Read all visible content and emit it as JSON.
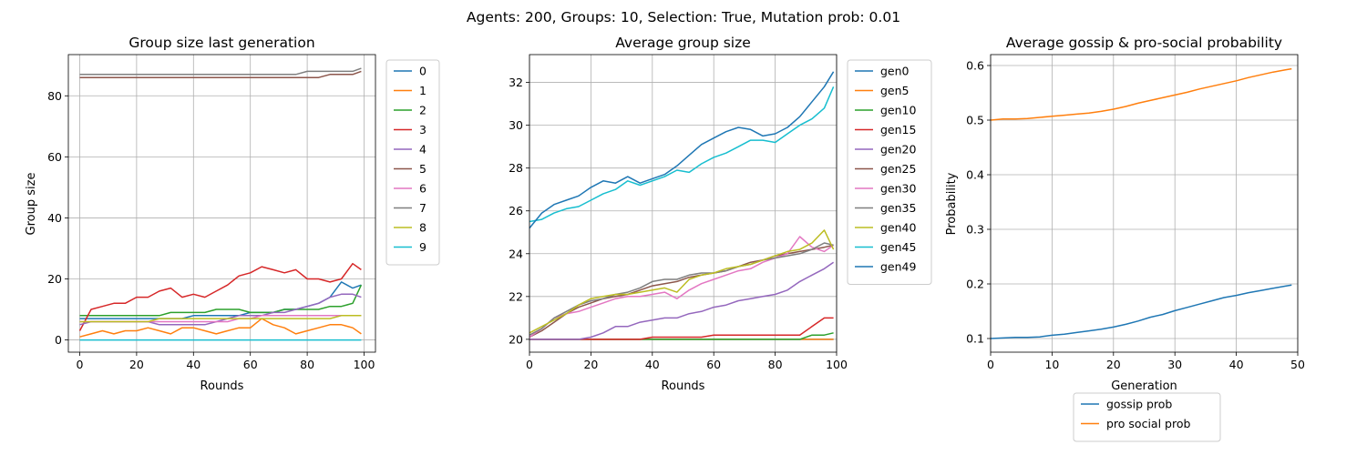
{
  "figure": {
    "suptitle": "Agents: 200, Groups: 10, Selection: True, Mutation prob: 0.01"
  },
  "colors": {
    "c0": "#1f77b4",
    "c1": "#ff7f0e",
    "c2": "#2ca02c",
    "c3": "#d62728",
    "c4": "#9467bd",
    "c5": "#8c564b",
    "c6": "#e377c2",
    "c7": "#7f7f7f",
    "c8": "#bcbd22",
    "c9": "#17becf"
  },
  "chart_data": [
    {
      "type": "line",
      "title": "Group size last generation",
      "xlabel": "Rounds",
      "ylabel": "Group size",
      "xlim": [
        -4,
        104
      ],
      "ylim": [
        -4,
        93.5
      ],
      "xticks": [
        0,
        20,
        40,
        60,
        80,
        100
      ],
      "yticks": [
        0,
        20,
        40,
        60,
        80
      ],
      "grid": true,
      "legend_position": "outside-right",
      "x": [
        0,
        4,
        8,
        12,
        16,
        20,
        24,
        28,
        32,
        36,
        40,
        44,
        48,
        52,
        56,
        60,
        64,
        68,
        72,
        76,
        80,
        84,
        88,
        92,
        96,
        99
      ],
      "series": [
        {
          "name": "0",
          "color": "#1f77b4",
          "values": [
            7,
            7,
            7,
            7,
            7,
            7,
            7,
            7,
            7,
            7,
            8,
            8,
            8,
            8,
            8,
            9,
            9,
            9,
            10,
            10,
            11,
            12,
            14,
            19,
            17,
            18
          ]
        },
        {
          "name": "1",
          "color": "#ff7f0e",
          "values": [
            1,
            2,
            3,
            2,
            3,
            3,
            4,
            3,
            2,
            4,
            4,
            3,
            2,
            3,
            4,
            4,
            7,
            5,
            4,
            2,
            3,
            4,
            5,
            5,
            4,
            2
          ]
        },
        {
          "name": "2",
          "color": "#2ca02c",
          "values": [
            8,
            8,
            8,
            8,
            8,
            8,
            8,
            8,
            9,
            9,
            9,
            9,
            10,
            10,
            10,
            9,
            9,
            9,
            10,
            10,
            10,
            10,
            11,
            11,
            12,
            18
          ]
        },
        {
          "name": "3",
          "color": "#d62728",
          "values": [
            3,
            10,
            11,
            12,
            12,
            14,
            14,
            16,
            17,
            14,
            15,
            14,
            16,
            18,
            21,
            22,
            24,
            23,
            22,
            23,
            20,
            20,
            19,
            20,
            25,
            23
          ]
        },
        {
          "name": "4",
          "color": "#9467bd",
          "values": [
            5,
            6,
            6,
            6,
            6,
            6,
            6,
            5,
            5,
            5,
            5,
            5,
            6,
            7,
            8,
            8,
            8,
            9,
            9,
            10,
            11,
            12,
            14,
            15,
            15,
            14
          ]
        },
        {
          "name": "5",
          "color": "#8c564b",
          "values": [
            86,
            86,
            86,
            86,
            86,
            86,
            86,
            86,
            86,
            86,
            86,
            86,
            86,
            86,
            86,
            86,
            86,
            86,
            86,
            86,
            86,
            86,
            87,
            87,
            87,
            88
          ]
        },
        {
          "name": "6",
          "color": "#e377c2",
          "values": [
            6,
            6,
            6,
            6,
            6,
            6,
            6,
            6,
            6,
            6,
            6,
            6,
            6,
            6,
            7,
            7,
            8,
            8,
            8,
            8,
            8,
            8,
            8,
            8,
            8,
            8
          ]
        },
        {
          "name": "7",
          "color": "#7f7f7f",
          "values": [
            87,
            87,
            87,
            87,
            87,
            87,
            87,
            87,
            87,
            87,
            87,
            87,
            87,
            87,
            87,
            87,
            87,
            87,
            87,
            87,
            88,
            88,
            88,
            88,
            88,
            89
          ]
        },
        {
          "name": "8",
          "color": "#bcbd22",
          "values": [
            6,
            6,
            6,
            6,
            6,
            6,
            6,
            7,
            7,
            7,
            7,
            7,
            7,
            7,
            7,
            7,
            7,
            7,
            7,
            7,
            7,
            7,
            7,
            8,
            8,
            8
          ]
        },
        {
          "name": "9",
          "color": "#17becf",
          "values": [
            0,
            0,
            0,
            0,
            0,
            0,
            0,
            0,
            0,
            0,
            0,
            0,
            0,
            0,
            0,
            0,
            0,
            0,
            0,
            0,
            0,
            0,
            0,
            0,
            0,
            0
          ]
        }
      ]
    },
    {
      "type": "line",
      "title": "Average group size",
      "xlabel": "Rounds",
      "ylabel": "",
      "xlim": [
        0,
        100
      ],
      "ylim": [
        19.4,
        33.3
      ],
      "xticks": [
        0,
        20,
        40,
        60,
        80,
        100
      ],
      "yticks": [
        20,
        22,
        24,
        26,
        28,
        30,
        32
      ],
      "grid": true,
      "legend_position": "outside-right",
      "x": [
        0,
        4,
        8,
        12,
        16,
        20,
        24,
        28,
        32,
        36,
        40,
        44,
        48,
        52,
        56,
        60,
        64,
        68,
        72,
        76,
        80,
        84,
        88,
        92,
        96,
        99
      ],
      "series": [
        {
          "name": "gen0",
          "color": "#1f77b4",
          "values": [
            20,
            20,
            20,
            20,
            20,
            20,
            20,
            20,
            20,
            20,
            20,
            20,
            20,
            20,
            20,
            20,
            20,
            20,
            20,
            20,
            20,
            20,
            20,
            20,
            20,
            20
          ]
        },
        {
          "name": "gen5",
          "color": "#ff7f0e",
          "values": [
            20,
            20,
            20,
            20,
            20,
            20,
            20,
            20,
            20,
            20,
            20,
            20,
            20,
            20,
            20,
            20,
            20,
            20,
            20,
            20,
            20,
            20,
            20,
            20,
            20,
            20
          ]
        },
        {
          "name": "gen10",
          "color": "#2ca02c",
          "values": [
            20,
            20,
            20,
            20,
            20,
            20,
            20,
            20,
            20,
            20,
            20,
            20,
            20,
            20,
            20,
            20,
            20,
            20,
            20,
            20,
            20,
            20,
            20,
            20.2,
            20.2,
            20.3
          ]
        },
        {
          "name": "gen15",
          "color": "#d62728",
          "values": [
            20,
            20,
            20,
            20,
            20,
            20,
            20,
            20,
            20,
            20,
            20.1,
            20.1,
            20.1,
            20.1,
            20.1,
            20.2,
            20.2,
            20.2,
            20.2,
            20.2,
            20.2,
            20.2,
            20.2,
            20.6,
            21,
            21
          ]
        },
        {
          "name": "gen20",
          "color": "#9467bd",
          "values": [
            20,
            20,
            20,
            20,
            20,
            20.1,
            20.3,
            20.6,
            20.6,
            20.8,
            20.9,
            21,
            21,
            21.2,
            21.3,
            21.5,
            21.6,
            21.8,
            21.9,
            22,
            22.1,
            22.3,
            22.7,
            23,
            23.3,
            23.6
          ]
        },
        {
          "name": "gen25",
          "color": "#8c564b",
          "values": [
            20.1,
            20.4,
            20.8,
            21.2,
            21.5,
            21.7,
            21.9,
            22,
            22.1,
            22.3,
            22.5,
            22.6,
            22.7,
            22.9,
            23,
            23.1,
            23.2,
            23.4,
            23.6,
            23.7,
            23.9,
            24,
            24.1,
            24.2,
            24.3,
            24.4
          ]
        },
        {
          "name": "gen30",
          "color": "#e377c2",
          "values": [
            20.1,
            20.5,
            21,
            21.2,
            21.3,
            21.5,
            21.7,
            21.9,
            22,
            22,
            22.1,
            22.2,
            21.9,
            22.3,
            22.6,
            22.8,
            23,
            23.2,
            23.3,
            23.6,
            23.8,
            24,
            24.8,
            24.3,
            24.1,
            24.4
          ]
        },
        {
          "name": "gen35",
          "color": "#7f7f7f",
          "values": [
            20.2,
            20.5,
            21,
            21.3,
            21.6,
            21.8,
            21.9,
            22.1,
            22.2,
            22.4,
            22.7,
            22.8,
            22.8,
            23,
            23.1,
            23.1,
            23.2,
            23.4,
            23.5,
            23.7,
            23.8,
            23.9,
            24,
            24.2,
            24.5,
            24.4
          ]
        },
        {
          "name": "gen40",
          "color": "#bcbd22",
          "values": [
            20.3,
            20.6,
            20.9,
            21.2,
            21.6,
            21.9,
            22,
            22.1,
            22.1,
            22.2,
            22.3,
            22.4,
            22.2,
            22.8,
            23,
            23.1,
            23.3,
            23.4,
            23.5,
            23.7,
            23.9,
            24.1,
            24.2,
            24.5,
            25.1,
            24.2
          ]
        },
        {
          "name": "gen45",
          "color": "#17becf",
          "values": [
            25.5,
            25.6,
            25.9,
            26.1,
            26.2,
            26.5,
            26.8,
            27,
            27.4,
            27.2,
            27.4,
            27.6,
            27.9,
            27.8,
            28.2,
            28.5,
            28.7,
            29,
            29.3,
            29.3,
            29.2,
            29.6,
            30,
            30.3,
            30.8,
            31.8
          ]
        },
        {
          "name": "gen49",
          "color": "#1f77b4",
          "values": [
            25.2,
            25.9,
            26.3,
            26.5,
            26.7,
            27.1,
            27.4,
            27.3,
            27.6,
            27.3,
            27.5,
            27.7,
            28.1,
            28.6,
            29.1,
            29.4,
            29.7,
            29.9,
            29.8,
            29.5,
            29.6,
            29.9,
            30.4,
            31.1,
            31.8,
            32.5
          ]
        }
      ]
    },
    {
      "type": "line",
      "title": "Average gossip & pro-social probability",
      "xlabel": "Generation",
      "ylabel": "Probability",
      "xlim": [
        0,
        50
      ],
      "ylim": [
        0.075,
        0.62
      ],
      "xticks": [
        0,
        10,
        20,
        30,
        40,
        50
      ],
      "yticks": [
        0.1,
        0.2,
        0.3,
        0.4,
        0.5,
        0.6
      ],
      "grid": true,
      "legend_position": "below",
      "x": [
        0,
        2,
        4,
        6,
        8,
        10,
        12,
        14,
        16,
        18,
        20,
        22,
        24,
        26,
        28,
        30,
        32,
        34,
        36,
        38,
        40,
        42,
        44,
        46,
        48,
        49
      ],
      "series": [
        {
          "name": "gossip prob",
          "color": "#1f77b4",
          "values": [
            0.1,
            0.101,
            0.102,
            0.102,
            0.103,
            0.106,
            0.108,
            0.111,
            0.114,
            0.117,
            0.121,
            0.126,
            0.132,
            0.139,
            0.144,
            0.151,
            0.157,
            0.163,
            0.169,
            0.175,
            0.179,
            0.184,
            0.188,
            0.192,
            0.196,
            0.198
          ]
        },
        {
          "name": "pro social prob",
          "color": "#ff7f0e",
          "values": [
            0.5,
            0.502,
            0.502,
            0.503,
            0.505,
            0.507,
            0.509,
            0.511,
            0.513,
            0.516,
            0.52,
            0.525,
            0.531,
            0.536,
            0.541,
            0.546,
            0.551,
            0.557,
            0.562,
            0.567,
            0.572,
            0.578,
            0.583,
            0.588,
            0.592,
            0.594
          ]
        }
      ]
    }
  ]
}
